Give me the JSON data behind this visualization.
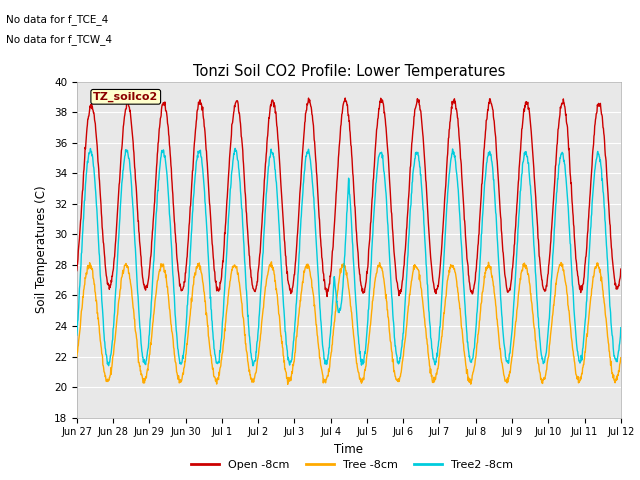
{
  "title": "Tonzi Soil CO2 Profile: Lower Temperatures",
  "xlabel": "Time",
  "ylabel": "Soil Temperatures (C)",
  "ylim": [
    18,
    40
  ],
  "yticks": [
    18,
    20,
    22,
    24,
    26,
    28,
    30,
    32,
    34,
    36,
    38,
    40
  ],
  "bg_color": "#e8e8e8",
  "text_annotations": [
    "No data for f_TCE_4",
    "No data for f_TCW_4"
  ],
  "legend_box_label": "TZ_soilco2",
  "legend_box_color": "#ffffcc",
  "lines": {
    "open": {
      "label": "Open -8cm",
      "color": "#cc0000"
    },
    "tree": {
      "label": "Tree -8cm",
      "color": "#ffaa00"
    },
    "tree2": {
      "label": "Tree2 -8cm",
      "color": "#00ccdd"
    }
  },
  "tick_labels": [
    "Jun 27",
    "Jun 28",
    "Jun 29",
    "Jun 30",
    "Jul 1",
    "Jul 2",
    "Jul 3",
    "Jul 4",
    "Jul 5",
    "Jul 6",
    "Jul 7",
    "Jul 8",
    "Jul 9",
    "Jul 10",
    "Jul 11",
    "Jul 12"
  ],
  "figsize": [
    6.4,
    4.8
  ],
  "dpi": 100
}
